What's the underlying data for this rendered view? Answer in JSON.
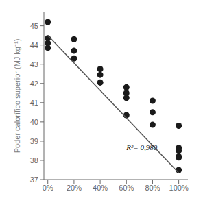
{
  "chart_data": {
    "type": "scatter",
    "ylabel": "Poder calorífico superior (MJ kg⁻¹)",
    "series": [
      {
        "type": "scatter",
        "color": "#1a1a1a",
        "x": [
          0,
          0,
          0,
          0,
          20,
          20,
          20,
          40,
          40,
          40,
          60,
          60,
          60,
          60,
          80,
          80,
          80,
          100,
          100,
          100,
          100,
          100,
          100
        ],
        "values": [
          45.2,
          44.35,
          44.1,
          43.85,
          44.3,
          43.7,
          43.3,
          42.75,
          42.45,
          42.05,
          41.8,
          41.5,
          41.25,
          40.35,
          41.1,
          40.5,
          39.85,
          39.8,
          38.65,
          38.5,
          38.2,
          38.15,
          37.5
        ]
      },
      {
        "type": "line",
        "color": "#555555",
        "x": [
          0,
          100
        ],
        "values": [
          44.5,
          37.35
        ]
      }
    ],
    "annotations": [
      {
        "text": "R²= 0,980",
        "x": 60,
        "y": 38.55,
        "color": "#1a1a1a"
      }
    ],
    "xlim": [
      -3,
      107
    ],
    "xticks": [
      {
        "value": 0,
        "label": "0%"
      },
      {
        "value": 20,
        "label": "20%"
      },
      {
        "value": 40,
        "label": "40%"
      },
      {
        "value": 60,
        "label": "60%"
      },
      {
        "value": 80,
        "label": "80%"
      },
      {
        "value": 100,
        "label": "100%"
      }
    ],
    "ylim": [
      37,
      45.7
    ],
    "yticks": [
      37,
      38,
      39,
      40,
      41,
      42,
      43,
      44,
      45
    ],
    "grid": false
  }
}
